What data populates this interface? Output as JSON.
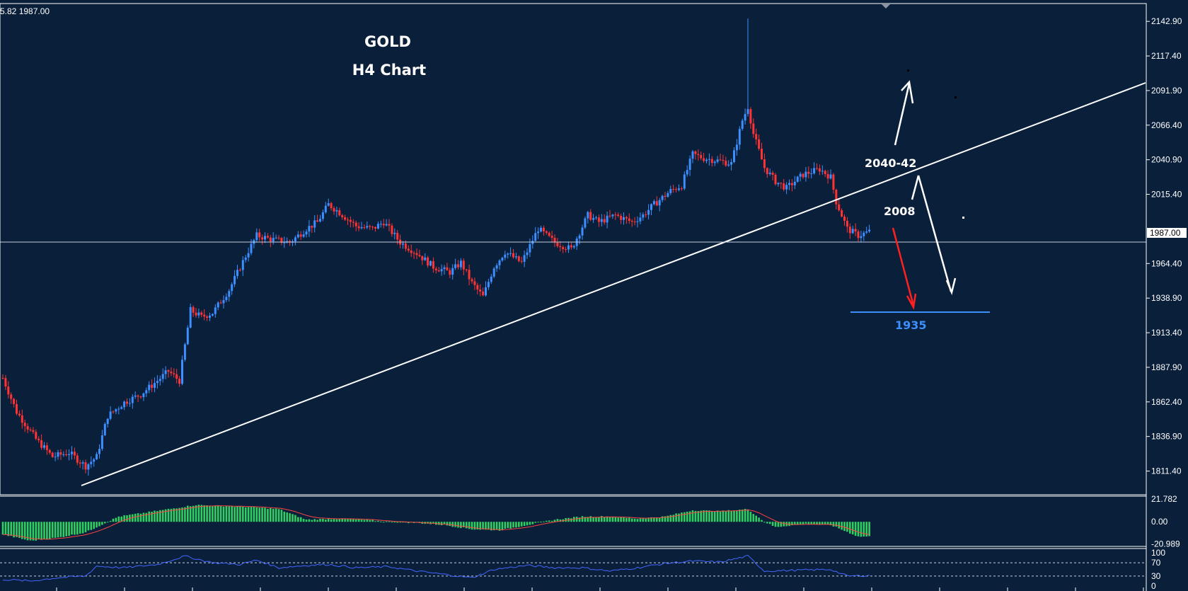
{
  "header": {
    "ohlc_text": "5.82 1987.00"
  },
  "colors": {
    "background": "#0a1f3a",
    "bull": "#3d8fff",
    "bear": "#ff3333",
    "trendline": "#ffffff",
    "target_line": "#3d8fff",
    "macd_hist": "#30d060",
    "macd_signal": "#ff4444",
    "rsi_line": "#4466ff"
  },
  "chart_data": [
    {
      "type": "candlestick",
      "title": "GOLD",
      "subtitle": "H4 Chart",
      "ylim": [
        1795,
        2155
      ],
      "yticks": [
        2142.9,
        2117.4,
        2091.9,
        2066.4,
        2040.9,
        2015.4,
        1964.4,
        1938.9,
        1913.4,
        1887.9,
        1862.4,
        1836.9,
        1811.4
      ],
      "current_price": 1987.0,
      "current_price_label": "1987.00",
      "anchors": [
        [
          0,
          1880
        ],
        [
          5,
          1855
        ],
        [
          12,
          1835
        ],
        [
          18,
          1822
        ],
        [
          24,
          1825
        ],
        [
          30,
          1815
        ],
        [
          34,
          1822
        ],
        [
          38,
          1852
        ],
        [
          44,
          1862
        ],
        [
          50,
          1868
        ],
        [
          56,
          1878
        ],
        [
          60,
          1885
        ],
        [
          64,
          1878
        ],
        [
          68,
          1930
        ],
        [
          72,
          1925
        ],
        [
          76,
          1928
        ],
        [
          82,
          1945
        ],
        [
          88,
          1970
        ],
        [
          92,
          1985
        ],
        [
          98,
          1982
        ],
        [
          104,
          1980
        ],
        [
          110,
          1990
        ],
        [
          114,
          1995
        ],
        [
          118,
          2008
        ],
        [
          122,
          2002
        ],
        [
          128,
          1992
        ],
        [
          134,
          1990
        ],
        [
          138,
          1995
        ],
        [
          144,
          1980
        ],
        [
          150,
          1972
        ],
        [
          156,
          1962
        ],
        [
          162,
          1958
        ],
        [
          166,
          1965
        ],
        [
          170,
          1950
        ],
        [
          174,
          1940
        ],
        [
          178,
          1962
        ],
        [
          182,
          1973
        ],
        [
          188,
          1965
        ],
        [
          194,
          1990
        ],
        [
          200,
          1980
        ],
        [
          206,
          1975
        ],
        [
          212,
          2000
        ],
        [
          216,
          1995
        ],
        [
          222,
          2000
        ],
        [
          228,
          1995
        ],
        [
          232,
          2000
        ],
        [
          236,
          2008
        ],
        [
          242,
          2018
        ],
        [
          246,
          2022
        ],
        [
          250,
          2045
        ],
        [
          254,
          2042
        ],
        [
          260,
          2040
        ],
        [
          264,
          2038
        ],
        [
          268,
          2070
        ],
        [
          270,
          2080
        ],
        [
          272,
          2060
        ],
        [
          276,
          2035
        ],
        [
          280,
          2025
        ],
        [
          284,
          2020
        ],
        [
          290,
          2030
        ],
        [
          296,
          2034
        ],
        [
          300,
          2028
        ],
        [
          302,
          2010
        ],
        [
          306,
          1990
        ],
        [
          310,
          1985
        ],
        [
          314,
          1988
        ]
      ],
      "spikes": [
        {
          "i": 270,
          "high": 2145
        }
      ]
    },
    {
      "type": "histogram",
      "indicator": "MACD",
      "ylim": [
        -22,
        23
      ],
      "yticks": [
        21.782,
        0.0,
        -20.989
      ],
      "anchors": [
        [
          0,
          -12
        ],
        [
          10,
          -18
        ],
        [
          20,
          -15
        ],
        [
          30,
          -10
        ],
        [
          38,
          0
        ],
        [
          42,
          5
        ],
        [
          50,
          8
        ],
        [
          60,
          12
        ],
        [
          70,
          16
        ],
        [
          80,
          15
        ],
        [
          90,
          14
        ],
        [
          100,
          12
        ],
        [
          110,
          2
        ],
        [
          120,
          3
        ],
        [
          130,
          2
        ],
        [
          140,
          0
        ],
        [
          150,
          -1
        ],
        [
          160,
          -3
        ],
        [
          170,
          -7
        ],
        [
          180,
          -8
        ],
        [
          190,
          -3
        ],
        [
          200,
          2
        ],
        [
          210,
          5
        ],
        [
          220,
          5
        ],
        [
          230,
          3
        ],
        [
          240,
          5
        ],
        [
          250,
          11
        ],
        [
          260,
          10
        ],
        [
          270,
          12
        ],
        [
          276,
          0
        ],
        [
          280,
          -5
        ],
        [
          290,
          -2
        ],
        [
          300,
          -3
        ],
        [
          310,
          -14
        ],
        [
          314,
          -14
        ]
      ]
    },
    {
      "type": "line",
      "indicator": "RSI",
      "ylim": [
        0,
        100
      ],
      "yticks": [
        100,
        70,
        30,
        0
      ],
      "levels": [
        70,
        30
      ],
      "anchors": [
        [
          0,
          20
        ],
        [
          10,
          15
        ],
        [
          20,
          25
        ],
        [
          30,
          30
        ],
        [
          34,
          60
        ],
        [
          44,
          55
        ],
        [
          56,
          65
        ],
        [
          66,
          90
        ],
        [
          76,
          70
        ],
        [
          86,
          65
        ],
        [
          92,
          78
        ],
        [
          100,
          55
        ],
        [
          110,
          62
        ],
        [
          118,
          65
        ],
        [
          128,
          55
        ],
        [
          140,
          58
        ],
        [
          150,
          45
        ],
        [
          160,
          35
        ],
        [
          170,
          25
        ],
        [
          178,
          50
        ],
        [
          190,
          62
        ],
        [
          200,
          55
        ],
        [
          210,
          55
        ],
        [
          220,
          45
        ],
        [
          230,
          55
        ],
        [
          240,
          68
        ],
        [
          250,
          75
        ],
        [
          260,
          72
        ],
        [
          270,
          90
        ],
        [
          276,
          45
        ],
        [
          290,
          48
        ],
        [
          300,
          50
        ],
        [
          306,
          30
        ],
        [
          314,
          32
        ]
      ]
    }
  ],
  "annotations": {
    "level_2040_42": "2040-42",
    "level_2008": "2008",
    "level_1935": "1935"
  }
}
